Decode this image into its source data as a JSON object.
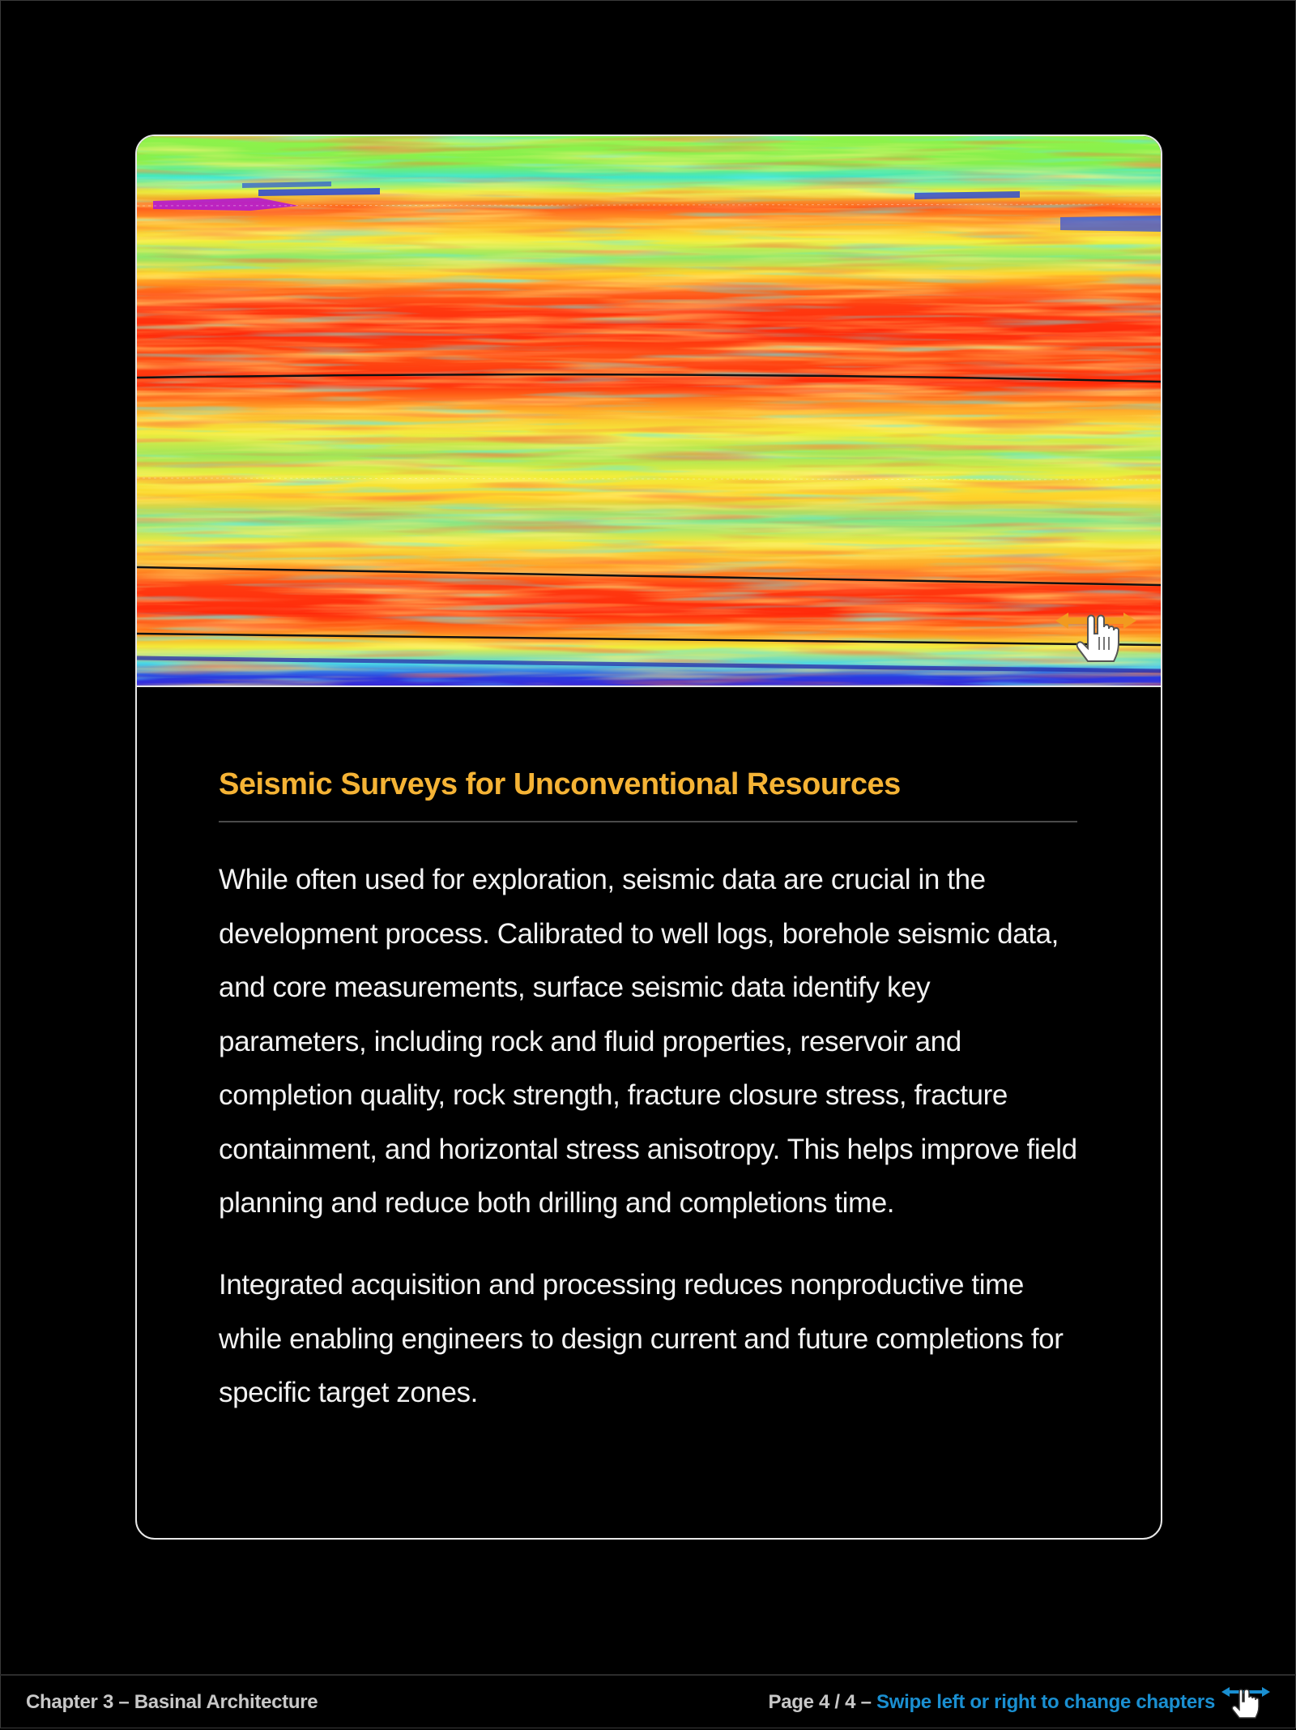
{
  "article": {
    "title": "Seismic Surveys for Unconventional Resources",
    "paragraphs": [
      "While often used for exploration, seismic data are crucial in the development process. Calibrated to well logs, borehole seismic data, and core measurements, surface seismic data identify key parameters, including rock and fluid properties, reservoir and completion quality, rock strength, fracture closure stress, fracture containment, and horizontal stress anisotropy. This helps improve field planning and reduce both drilling and completions time.",
      "Integrated acquisition and processing reduces nonproductive time while enabling engineers to design current and future completions for specific target zones."
    ]
  },
  "hero": {
    "icon": "swipe-hand-icon"
  },
  "footer": {
    "chapter": "Chapter 3 – Basinal Architecture",
    "page_info": "Page 4 / 4 – ",
    "swipe_hint": "Swipe left or right to change chapters",
    "icon": "swipe-hand-icon"
  },
  "colors": {
    "title": "#f5b335",
    "link": "#1a8fd1",
    "swipe_arrow": "#f29a1f"
  }
}
